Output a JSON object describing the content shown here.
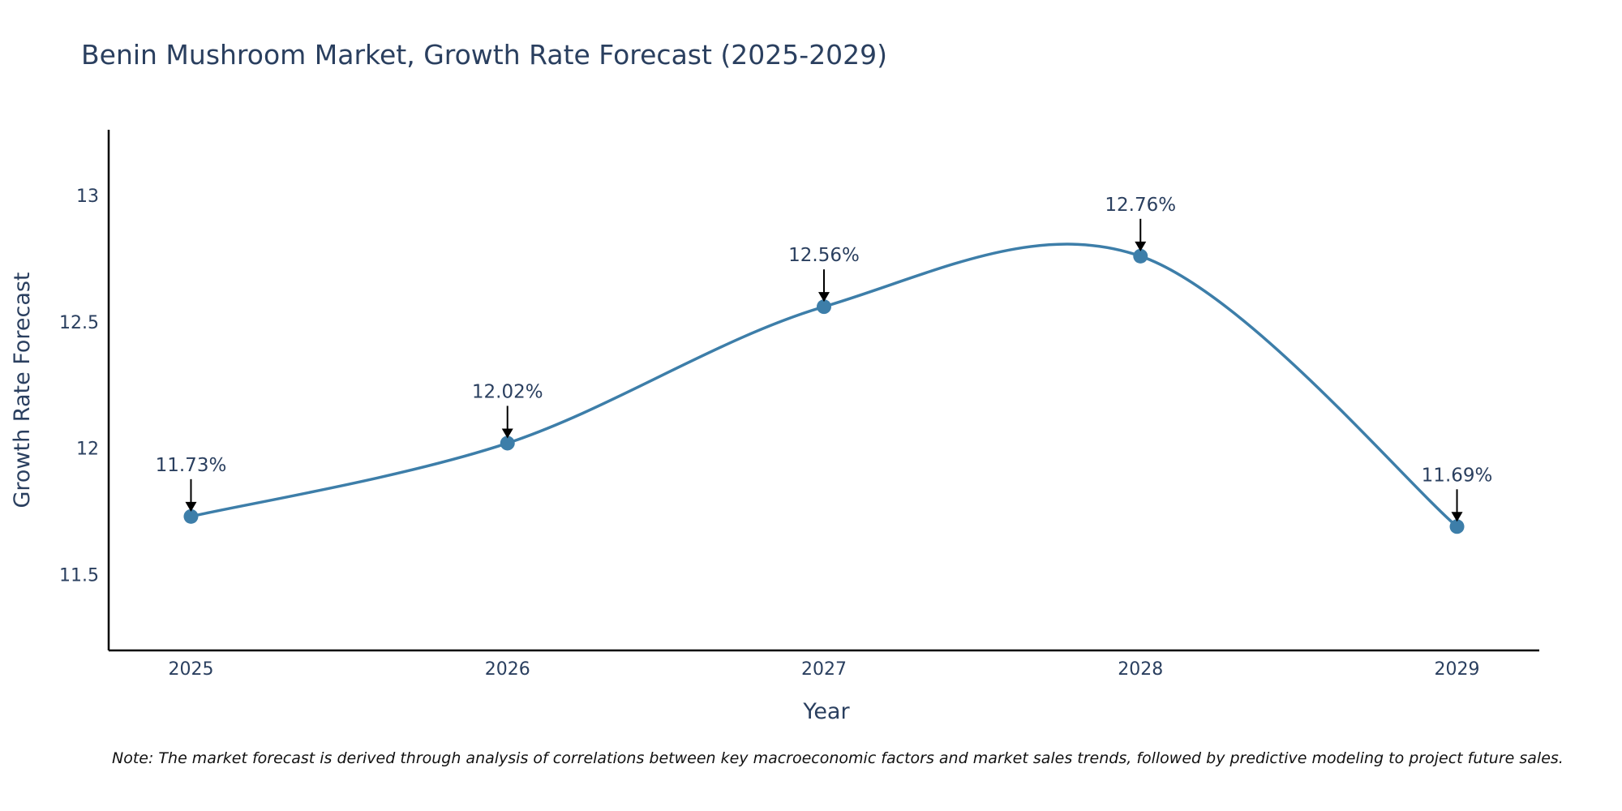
{
  "colors": {
    "line": "#3d7ea9",
    "marker": "#3d7ea9",
    "axis": "#000000",
    "text": "#2a3f5f",
    "arrow": "#000000"
  },
  "chart_data": {
    "type": "line",
    "title": "Benin Mushroom Market, Growth Rate Forecast (2025-2029)",
    "xlabel": "Year",
    "ylabel": "Growth Rate Forecast",
    "categories": [
      "2025",
      "2026",
      "2027",
      "2028",
      "2029"
    ],
    "x": [
      2025,
      2026,
      2027,
      2028,
      2029
    ],
    "xlim": [
      2024.74,
      2029.26
    ],
    "ylim": [
      11.2,
      13.26
    ],
    "yticks": [
      11.5,
      12,
      12.5,
      13
    ],
    "ytick_labels": [
      "11.5",
      "12",
      "12.5",
      "13"
    ],
    "series": [
      {
        "name": "Growth Rate Forecast",
        "values": [
          11.73,
          12.02,
          12.56,
          12.76,
          11.69
        ],
        "labels": [
          "11.73%",
          "12.02%",
          "12.56%",
          "12.76%",
          "11.69%"
        ]
      }
    ],
    "grid": false,
    "line_shape": "spline",
    "markers": true
  },
  "note": "Note: The market forecast is derived through analysis of correlations between key macroeconomic factors and market sales trends, followed by predictive modeling to project future sales."
}
